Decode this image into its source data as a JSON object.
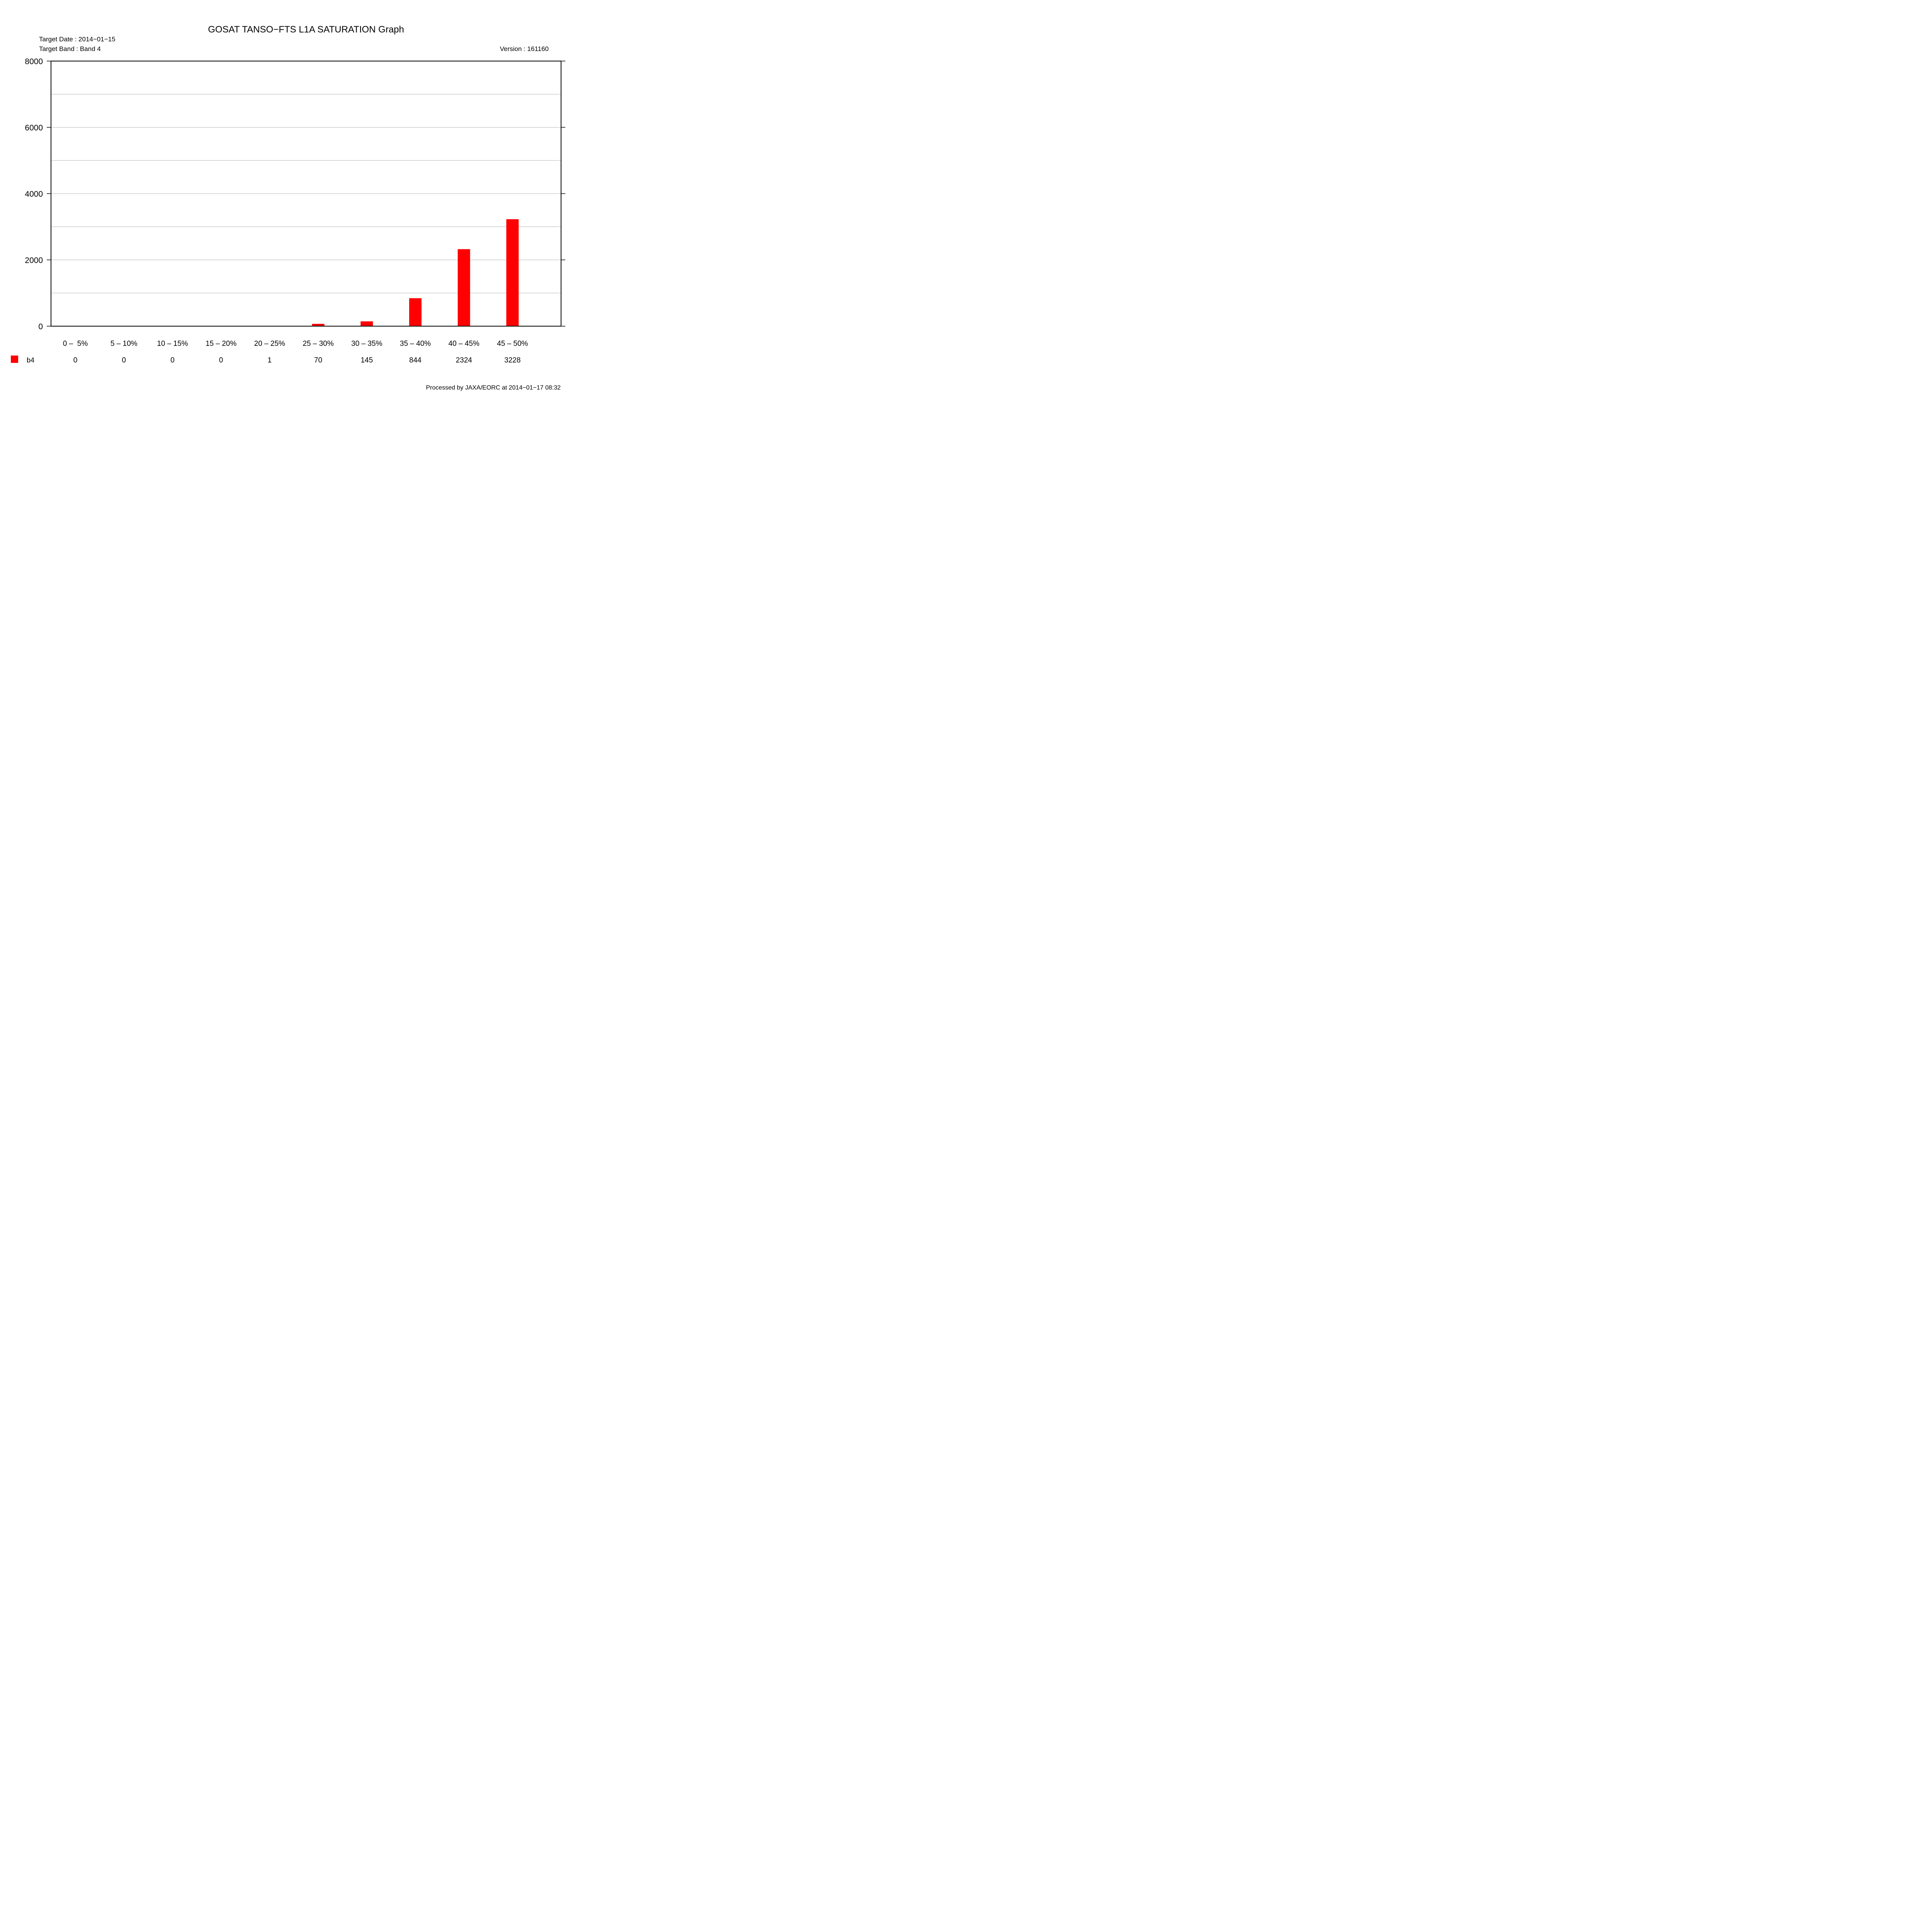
{
  "chart_data": {
    "type": "bar",
    "title": "GOSAT TANSO−FTS L1A SATURATION Graph",
    "target_date": "Target Date : 2014−01−15",
    "target_band": "Target Band : Band 4",
    "version": "Version : 161160",
    "footer": "Processed by JAXA/EORC at 2014−01−17 08:32",
    "categories": [
      "0 –  5%",
      "5 – 10%",
      "10 – 15%",
      "15 – 20%",
      "20 – 25%",
      "25 – 30%",
      "30 – 35%",
      "35 – 40%",
      "40 – 45%",
      "45 – 50%"
    ],
    "series": [
      {
        "name": "b4",
        "color": "#ff0000",
        "values": [
          0,
          0,
          0,
          0,
          1,
          70,
          145,
          844,
          2324,
          3228
        ]
      }
    ],
    "value_labels": [
      "0",
      "0",
      "0",
      "0",
      "1",
      "70",
      "145",
      "844",
      "2324",
      "3228"
    ],
    "ylim": [
      0,
      8000
    ],
    "y_ticks": [
      0,
      2000,
      4000,
      6000,
      8000
    ],
    "y_tick_labels": [
      "0",
      "2000",
      "4000",
      "6000",
      "8000"
    ],
    "minor_gridlines": [
      1000,
      3000,
      5000,
      7000
    ],
    "grid": true,
    "legend_position": "bottom-left table"
  }
}
